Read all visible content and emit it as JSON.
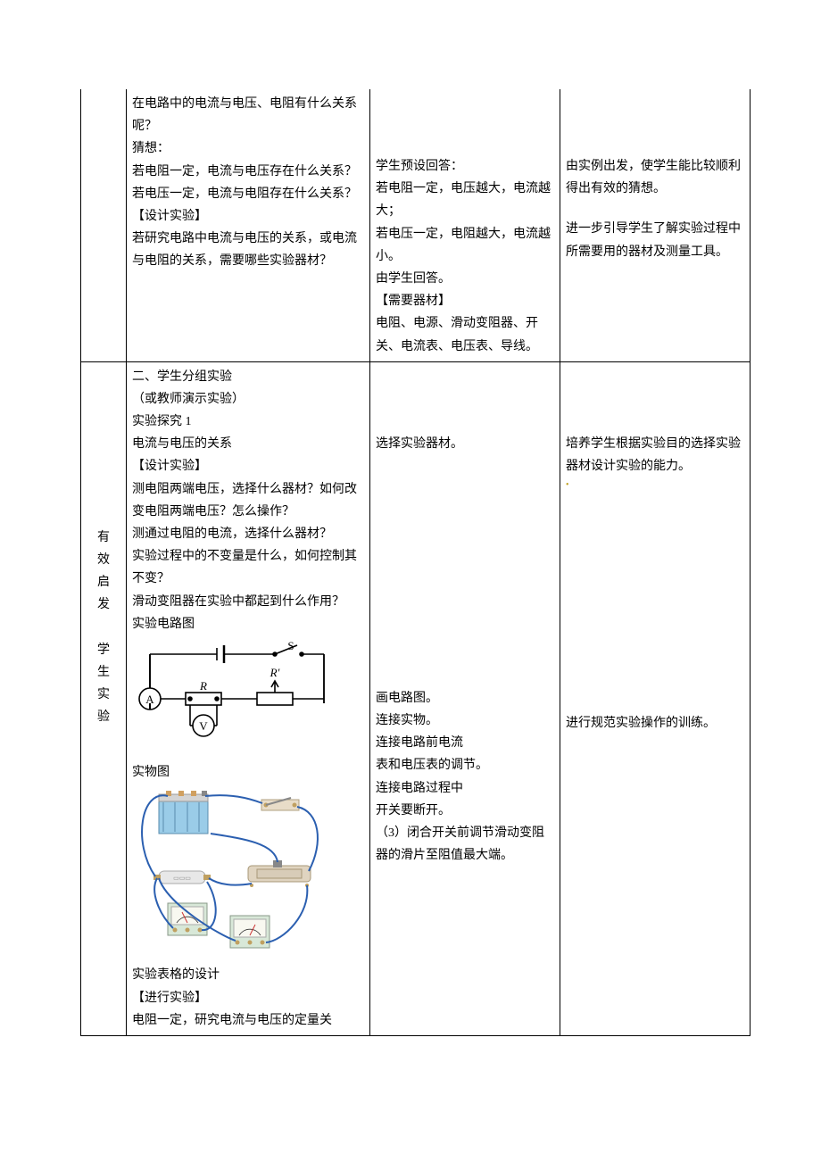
{
  "row1": {
    "teacher": {
      "p1": "在电路中的电流与电压、电阻有什么关系呢？",
      "p2": "猜想：",
      "p3": "若电阻一定，电流与电压存在什么关系？",
      "p4": "若电压一定，电流与电阻存在什么关系？",
      "p5": "【设计实验】",
      "p6": "若研究电路中电流与电压的关系，或电流与电阻的关系，需要哪些实验器材？"
    },
    "student": {
      "p1": "学生预设回答：",
      "p2": "若电阻一定，电压越大，电流越大；",
      "p3": "若电压一定，电阻越大，电流越小。",
      "p4": "由学生回答。",
      "p5": "【需要器材】",
      "p6": "电阻、电源、滑动变阻器、开关、电流表、电压表、导线。"
    },
    "purpose": {
      "p1": "由实例出发，使学生能比较顺利得出有效的猜想。",
      "p2": "进一步引导学生了解实验过程中所需要用的器材及测量工具。"
    }
  },
  "row2": {
    "side": [
      "有",
      "效",
      "启",
      "发",
      "",
      "学",
      "生",
      "实",
      "验"
    ],
    "teacher": {
      "p1": "二、学生分组实验",
      "p2": "（或教师演示实验）",
      "p3": "实验探究 1",
      "p4": "电流与电压的关系",
      "p5": "【设计实验】",
      "p6": "测电阻两端电压，选择什么器材？如何改变电阻两端电压？怎么操作？",
      "p7": "测通过电阻的电流，选择什么器材？",
      "p8": "实验过程中的不变量是什么，如何控制其不变？",
      "p9": "滑动变阻器在实验中都起到什么作用？",
      "p10": "实验电路图",
      "p11": "实物图",
      "p12": "实验表格的设计",
      "p13": "【进行实验】",
      "p14": "电阻一定，研究电流与电压的定量关"
    },
    "student": {
      "p1": "选择实验器材。",
      "p2": "画电路图。",
      "p3": "连接实物。",
      "p4": "连接电路前电流",
      "p5": "表和电压表的调节。",
      "p6": "连接电路过程中",
      "p7": "开关要断开。",
      "p8": "（3）闭合开关前调节滑动变阻器的滑片至阻值最大端。"
    },
    "purpose": {
      "p1": "培养学生根据实验目的选择实验器材设计实验的能力。",
      "p2": "进行规范实验操作的训练。"
    }
  },
  "circuit": {
    "labels": {
      "S": "S",
      "A": "A",
      "V": "V",
      "R": "R",
      "Rp": "R′"
    },
    "colors": {
      "wire": "#000000",
      "fill": "#ffffff"
    }
  },
  "photo": {
    "colors": {
      "battery_body": "#9acce8",
      "battery_top": "#d4d4d4",
      "meter_body": "#d8e8d8",
      "meter_face": "#f8f8f0",
      "rheostat": "#e0d4c0",
      "switch_base": "#e8dcc8",
      "wire_blue": "#2b5fb0",
      "resistor_tube": "#e8e8e8"
    }
  }
}
